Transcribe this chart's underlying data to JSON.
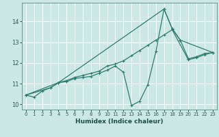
{
  "xlabel": "Humidex (Indice chaleur)",
  "bg_color": "#cce8e4",
  "line_color": "#2d7a6e",
  "grid_color": "#ffffff",
  "xlim": [
    -0.5,
    23.5
  ],
  "ylim": [
    9.75,
    14.9
  ],
  "xticks": [
    0,
    1,
    2,
    3,
    4,
    5,
    6,
    7,
    8,
    9,
    10,
    11,
    12,
    13,
    14,
    15,
    16,
    17,
    18,
    19,
    20,
    21,
    22,
    23
  ],
  "yticks": [
    10,
    11,
    12,
    13,
    14
  ],
  "line1_x": [
    0,
    1,
    2,
    3,
    4,
    5,
    6,
    7,
    8,
    9,
    10,
    11,
    12,
    13,
    14,
    15,
    16,
    17,
    18,
    19,
    20,
    21,
    22,
    23
  ],
  "line1_y": [
    10.45,
    10.35,
    10.65,
    10.8,
    11.05,
    11.1,
    11.25,
    11.3,
    11.35,
    11.5,
    11.65,
    11.85,
    11.55,
    9.95,
    10.15,
    10.95,
    12.55,
    14.6,
    13.65,
    13.1,
    12.2,
    12.3,
    12.45,
    12.5
  ],
  "line2_x": [
    0,
    3,
    4,
    5,
    6,
    7,
    8,
    9,
    10,
    11,
    12,
    13,
    14,
    15,
    16,
    17,
    18,
    20,
    21,
    22,
    23
  ],
  "line2_y": [
    10.45,
    10.8,
    11.05,
    11.15,
    11.3,
    11.4,
    11.5,
    11.6,
    11.85,
    11.95,
    12.1,
    12.35,
    12.6,
    12.85,
    13.1,
    13.35,
    13.6,
    12.15,
    12.25,
    12.4,
    12.5
  ],
  "line3_x": [
    0,
    4,
    17,
    18,
    19,
    23
  ],
  "line3_y": [
    10.45,
    11.05,
    14.6,
    13.65,
    13.1,
    12.5
  ]
}
